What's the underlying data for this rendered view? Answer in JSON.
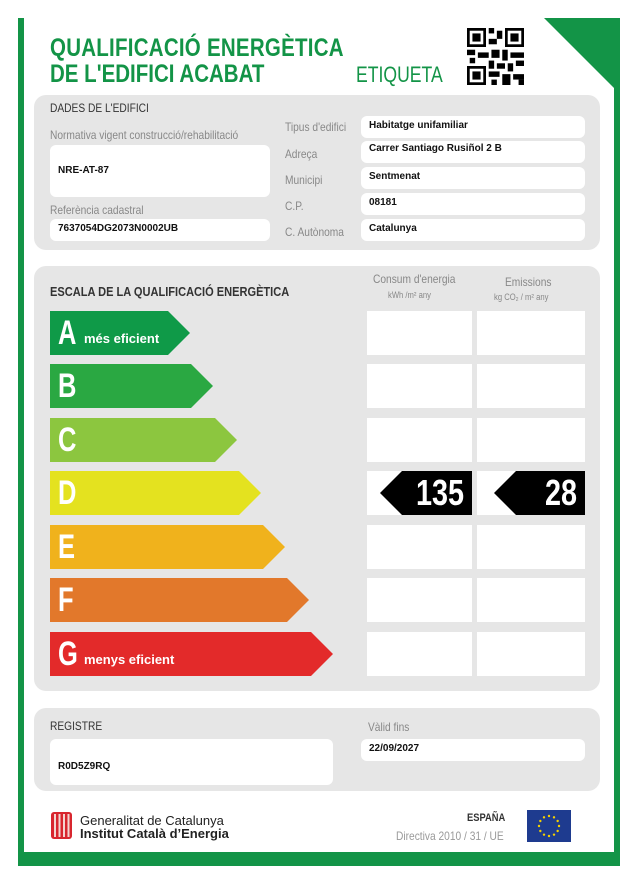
{
  "header": {
    "title_line1": "QUALIFICACIÓ ENERGÈTICA",
    "title_line2": "DE L'EDIFICI ACABAT",
    "label": "ETIQUETA",
    "qr_icon": "qr-code"
  },
  "building": {
    "section_title": "DADES DE L'EDIFICI",
    "normativa_label": "Normativa vigent construcció/rehabilitació",
    "normativa": "NRE-AT-87",
    "cadastral_label": "Referència cadastral",
    "cadastral": "7637054DG2073N0002UB",
    "fields": [
      {
        "label": "Tipus d'edifici",
        "value": "Habitatge unifamiliar"
      },
      {
        "label": "Adreça",
        "value": "Carrer Santiago Rusiñol 2 B"
      },
      {
        "label": "Municipi",
        "value": "Sentmenat"
      },
      {
        "label": "C.P.",
        "value": "08181"
      },
      {
        "label": "C. Autònoma",
        "value": "Catalunya"
      }
    ]
  },
  "scale": {
    "section_title": "ESCALA DE LA QUALIFICACIÓ ENERGÈTICA",
    "consumption_header": "Consum d'energia",
    "consumption_unit": "kWh /m² any",
    "emissions_header": "Emissions",
    "emissions_unit": "kg CO₂ / m² any",
    "classes": [
      {
        "letter": "A",
        "sub": "més eficient",
        "color": "#0f9a48"
      },
      {
        "letter": "B",
        "sub": "",
        "color": "#2aa842"
      },
      {
        "letter": "C",
        "sub": "",
        "color": "#8cc63f"
      },
      {
        "letter": "D",
        "sub": "",
        "color": "#e4e21f"
      },
      {
        "letter": "E",
        "sub": "",
        "color": "#f0b21c"
      },
      {
        "letter": "F",
        "sub": "",
        "color": "#e2782b"
      },
      {
        "letter": "G",
        "sub": "menys eficient",
        "color": "#e32a2a"
      }
    ],
    "rating": "D",
    "consumption": "135",
    "emissions": "28"
  },
  "registry": {
    "section_title": "REGISTRE",
    "value": "R0D5Z9RQ",
    "valid_label": "Vàlid fins",
    "valid": "22/09/2027"
  },
  "footer": {
    "org1": "Generalitat de Catalunya",
    "org2": "Institut Català d’Energia",
    "country": "ESPAÑA",
    "directive": "Directiva 2010 / 31 / UE",
    "eu_flag_icon": "eu-flag"
  }
}
